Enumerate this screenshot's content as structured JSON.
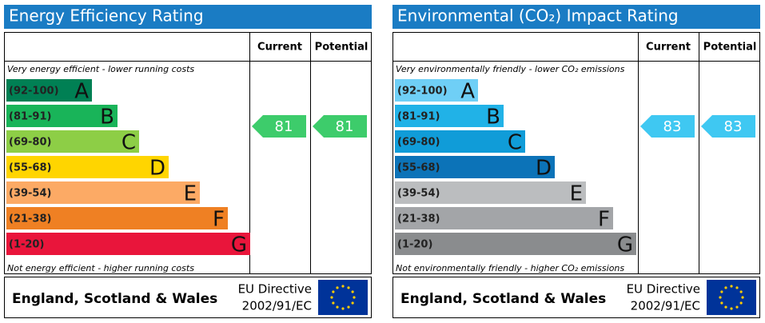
{
  "chart_data": [
    {
      "type": "rating",
      "title": "Energy Efficiency Rating",
      "columns": [
        "Current",
        "Potential"
      ],
      "top_note": "Very energy efficient - lower running costs",
      "bottom_note": "Not energy efficient - higher running costs",
      "bands": [
        {
          "range": "(92-100)",
          "letter": "A",
          "color": "#008054"
        },
        {
          "range": "(81-91)",
          "letter": "B",
          "color": "#19b459"
        },
        {
          "range": "(69-80)",
          "letter": "C",
          "color": "#8dce46"
        },
        {
          "range": "(55-68)",
          "letter": "D",
          "color": "#ffd500"
        },
        {
          "range": "(39-54)",
          "letter": "E",
          "color": "#fcaa65"
        },
        {
          "range": "(21-38)",
          "letter": "F",
          "color": "#ef8023"
        },
        {
          "range": "(1-20)",
          "letter": "G",
          "color": "#e9153b"
        }
      ],
      "values": [
        81,
        81
      ],
      "arrow_color": "#3dcc6b",
      "footer": "England, Scotland & Wales",
      "directive": [
        "EU Directive",
        "2002/91/EC"
      ]
    },
    {
      "type": "rating",
      "title": "Environmental (CO₂) Impact Rating",
      "columns": [
        "Current",
        "Potential"
      ],
      "top_note": "Very environmentally friendly - lower CO₂ emissions",
      "bottom_note": "Not environmentally friendly - higher CO₂ emissions",
      "bands": [
        {
          "range": "(92-100)",
          "letter": "A",
          "color": "#6fcff6"
        },
        {
          "range": "(81-91)",
          "letter": "B",
          "color": "#21b2e7"
        },
        {
          "range": "(69-80)",
          "letter": "C",
          "color": "#109cd8"
        },
        {
          "range": "(55-68)",
          "letter": "D",
          "color": "#0c73b8"
        },
        {
          "range": "(39-54)",
          "letter": "E",
          "color": "#bbbdbf"
        },
        {
          "range": "(21-38)",
          "letter": "F",
          "color": "#a3a5a8"
        },
        {
          "range": "(1-20)",
          "letter": "G",
          "color": "#8a8c8e"
        }
      ],
      "values": [
        83,
        83
      ],
      "arrow_color": "#3fc8f2",
      "footer": "England, Scotland & Wales",
      "directive": [
        "EU Directive",
        "2002/91/EC"
      ]
    }
  ]
}
